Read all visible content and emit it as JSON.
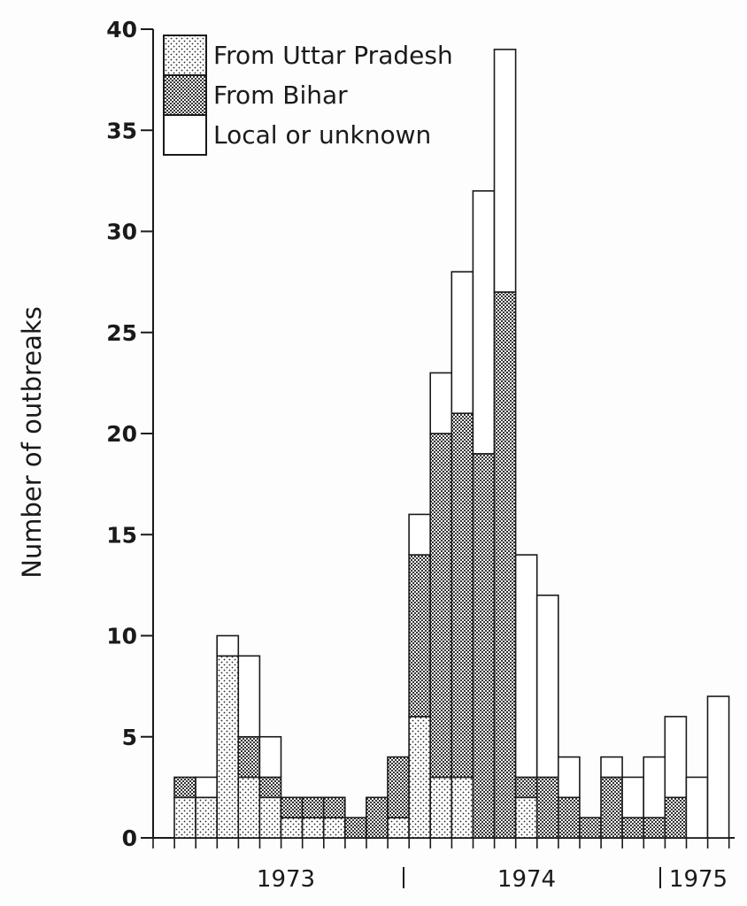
{
  "chart_data": {
    "type": "bar",
    "stacked": true,
    "ylabel": "Number of outbreaks",
    "ylim": [
      0,
      40
    ],
    "yticks": [
      0,
      5,
      10,
      15,
      20,
      25,
      30,
      35,
      40
    ],
    "year_labels": [
      "1973",
      "1974",
      "1975"
    ],
    "legend_position": "top-left",
    "series": [
      {
        "name": "From Uttar Pradesh",
        "pattern": "light-stipple",
        "values": [
          2,
          2,
          9,
          3,
          2,
          1,
          1,
          1,
          0,
          0,
          1,
          6,
          3,
          3,
          0,
          0,
          2,
          0,
          0,
          0,
          0,
          0,
          0,
          0,
          0,
          0
        ]
      },
      {
        "name": "From Bihar",
        "pattern": "dense-stipple",
        "values": [
          1,
          0,
          0,
          2,
          1,
          1,
          1,
          1,
          1,
          2,
          3,
          8,
          17,
          18,
          19,
          27,
          1,
          3,
          2,
          1,
          3,
          1,
          1,
          2,
          0,
          0
        ]
      },
      {
        "name": "Local or unknown",
        "pattern": "white",
        "values": [
          0,
          1,
          1,
          4,
          2,
          0,
          0,
          0,
          0,
          0,
          0,
          2,
          3,
          7,
          13,
          12,
          11,
          9,
          2,
          0,
          1,
          2,
          3,
          4,
          3,
          7
        ]
      }
    ]
  }
}
